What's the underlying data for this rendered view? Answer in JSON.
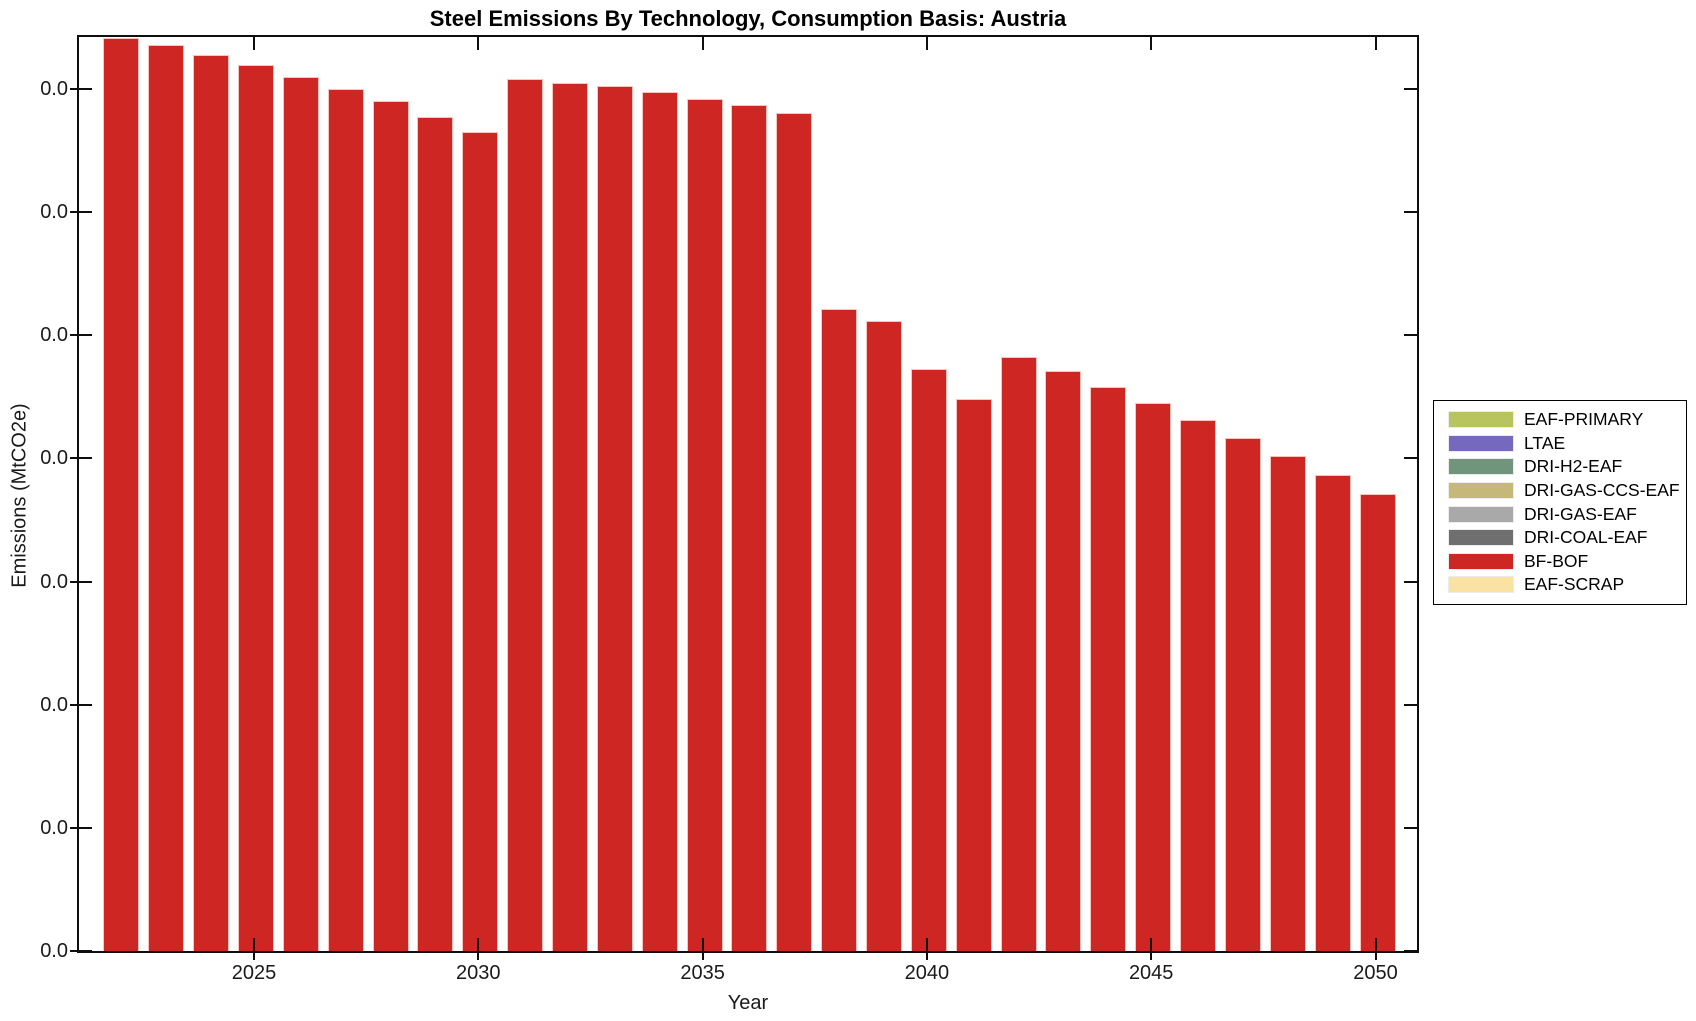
{
  "figure": {
    "title": "Steel Emissions By Technology, Consumption Basis: Austria",
    "xlabel": "Year",
    "ylabel": "Emissions (MtCO2e)"
  },
  "axes": {
    "x_tick_labels": [
      "2025",
      "2030",
      "2035",
      "2040",
      "2045",
      "2050"
    ],
    "x_tick_years": [
      2025,
      2030,
      2035,
      2040,
      2045,
      2050
    ],
    "y_tick_labels": [
      "0.0",
      "0.0",
      "0.0",
      "0.0",
      "0.0",
      "0.0",
      "0.0",
      "0.0"
    ]
  },
  "legend": {
    "entries": [
      {
        "label": "EAF-PRIMARY",
        "color": "#b8c45e"
      },
      {
        "label": "LTAE",
        "color": "#7569bd"
      },
      {
        "label": "DRI-H2-EAF",
        "color": "#71947c"
      },
      {
        "label": "DRI-GAS-CCS-EAF",
        "color": "#c5b878"
      },
      {
        "label": "DRI-GAS-EAF",
        "color": "#a9a9a9"
      },
      {
        "label": "DRI-COAL-EAF",
        "color": "#6f6f6f"
      },
      {
        "label": "BF-BOF",
        "color": "#ce2723"
      },
      {
        "label": "EAF-SCRAP",
        "color": "#fae3a2"
      }
    ]
  },
  "chart_data": {
    "type": "bar",
    "title": "Steel Emissions By Technology, Consumption Basis: Austria",
    "xlabel": "Year",
    "ylabel": "Emissions (MtCO2e)",
    "grid": false,
    "legend_position": "outside-right",
    "x_range_years": [
      2021,
      2051
    ],
    "y_axis": {
      "num_ticks": 8,
      "tick_labels": [
        "0.0",
        "0.0",
        "0.0",
        "0.0",
        "0.0",
        "0.0",
        "0.0",
        "0.0"
      ],
      "note_values_too_small_for_tick_precision": true
    },
    "categories": [
      2022,
      2023,
      2024,
      2025,
      2026,
      2027,
      2028,
      2029,
      2030,
      2031,
      2032,
      2033,
      2034,
      2035,
      2036,
      2037,
      2038,
      2039,
      2040,
      2041,
      2042,
      2043,
      2044,
      2045,
      2046,
      2047,
      2048,
      2049,
      2050
    ],
    "series": [
      {
        "name": "BF-BOF",
        "color": "#ce2723",
        "values_fraction_of_yaxis": [
          0.999,
          0.991,
          0.98,
          0.97,
          0.956,
          0.943,
          0.93,
          0.913,
          0.896,
          0.954,
          0.95,
          0.947,
          0.94,
          0.933,
          0.926,
          0.917,
          0.704,
          0.691,
          0.638,
          0.606,
          0.651,
          0.636,
          0.619,
          0.601,
          0.583,
          0.563,
          0.544,
          0.523,
          0.502
        ]
      }
    ],
    "other_series_in_legend_with_zero_visible_area": [
      "EAF-PRIMARY",
      "LTAE",
      "DRI-H2-EAF",
      "DRI-GAS-CCS-EAF",
      "DRI-GAS-EAF",
      "DRI-COAL-EAF",
      "EAF-SCRAP"
    ]
  }
}
